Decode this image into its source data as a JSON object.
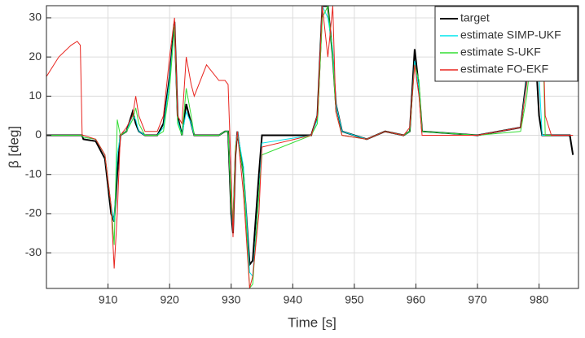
{
  "chart_data": {
    "type": "line",
    "xlabel": "Time [s]",
    "ylabel": "β [deg]",
    "x": [
      900,
      902,
      904,
      905,
      905.5,
      905.8,
      906,
      908,
      909.5,
      910.5,
      911,
      911.5,
      912,
      913,
      914,
      914.5,
      915,
      916,
      918,
      919,
      920,
      920.8,
      921.3,
      922,
      922.7,
      923.5,
      924,
      926,
      928,
      929,
      929.5,
      930,
      930.3,
      930.7,
      931,
      932,
      933,
      933.5,
      934.5,
      935,
      943,
      944,
      944.8,
      945.7,
      946.5,
      947,
      948,
      952,
      955,
      958,
      959,
      959.8,
      960.5,
      961,
      970,
      977,
      978,
      979,
      980,
      980.5,
      981,
      982,
      985,
      985.5
    ],
    "series": [
      {
        "name": "target",
        "color": "#000000",
        "values": [
          0,
          0,
          0,
          0,
          0,
          0,
          -1,
          -1.5,
          -6,
          -20,
          -22,
          -10,
          0,
          1,
          6,
          3,
          1,
          0,
          0,
          3,
          15,
          29,
          5,
          0,
          8,
          3,
          0,
          0,
          0,
          1,
          1,
          -20,
          -25,
          -5,
          1,
          -10,
          -33,
          -32,
          -10,
          0,
          0,
          5,
          33,
          33,
          20,
          8,
          1,
          -1,
          1,
          0,
          1,
          22,
          12,
          1,
          0,
          2,
          15,
          33,
          5,
          0,
          0,
          0,
          0,
          -5
        ]
      },
      {
        "name": "estimate SIMP-UKF",
        "color": "#00e5ee",
        "values": [
          0,
          0,
          0,
          0,
          0,
          0,
          -0.5,
          -1,
          -5,
          -18,
          -22,
          -5,
          0,
          1,
          5,
          4,
          1,
          0,
          0,
          2,
          14,
          28,
          4,
          0,
          6,
          3,
          0,
          0,
          0,
          1,
          1,
          -18,
          -24,
          -3,
          1,
          -8,
          -35,
          -36,
          -15,
          -2,
          0,
          4,
          33,
          30,
          22,
          8,
          1,
          -1,
          1,
          0,
          1,
          19,
          12,
          1,
          0,
          2,
          14,
          30,
          15,
          0,
          0,
          0,
          0,
          0
        ]
      },
      {
        "name": "estimate S-UKF",
        "color": "#33dd33",
        "values": [
          0,
          0,
          0,
          0,
          0,
          0,
          -0.5,
          -1,
          -5,
          -18,
          -28,
          4,
          0,
          1,
          4,
          7,
          3,
          0,
          0,
          1,
          12,
          28,
          3,
          0,
          12,
          5,
          0,
          0,
          0,
          1,
          1,
          -18,
          -22,
          -3,
          0,
          -10,
          -39,
          -38,
          -15,
          -5,
          0,
          3,
          30,
          33,
          20,
          6,
          0,
          -1,
          1,
          0,
          1,
          18,
          14,
          1,
          0,
          1,
          10,
          25,
          33,
          33,
          0,
          0,
          0,
          0
        ]
      },
      {
        "name": "estimate FO-EKF",
        "color": "#e8251f",
        "values": [
          15,
          20,
          23,
          24,
          23,
          0,
          0,
          -1,
          -5,
          -18,
          -34,
          -20,
          0,
          2,
          5,
          10,
          5,
          1,
          1,
          5,
          20,
          30,
          5,
          3,
          20,
          13,
          10,
          18,
          14,
          14,
          13,
          -10,
          -26,
          -5,
          1,
          -15,
          -39,
          -36,
          -20,
          -3,
          0,
          5,
          33,
          20,
          33,
          6,
          0,
          -1,
          1,
          0,
          2,
          18,
          10,
          0,
          0,
          2,
          13,
          33,
          33,
          33,
          5,
          0,
          0,
          0
        ]
      }
    ],
    "xlim": [
      900,
      986.4
    ],
    "ylim": [
      -39.1,
      33.1
    ],
    "xticks": [
      910,
      920,
      930,
      940,
      950,
      960,
      970,
      980
    ],
    "yticks": [
      -30,
      -20,
      -10,
      0,
      10,
      20,
      30
    ],
    "grid": true,
    "legend": "top-right"
  }
}
